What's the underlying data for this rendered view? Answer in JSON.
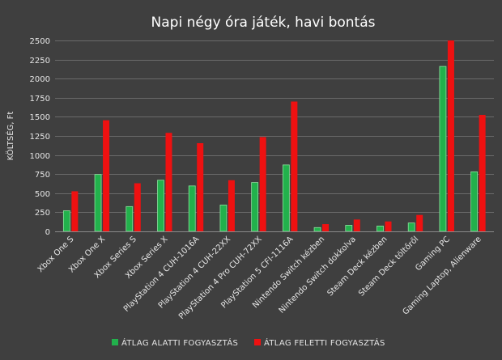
{
  "chart_data": {
    "type": "bar",
    "title": "Napi négy óra játék, havi bontás",
    "ylabel": "KÖLTSÉG, Ft",
    "xlabel": "",
    "ylim": [
      0,
      2500
    ],
    "yticks": [
      0,
      250,
      500,
      750,
      1000,
      1250,
      1500,
      1750,
      2000,
      2250,
      2500
    ],
    "grid": true,
    "legend_position": "bottom",
    "categories": [
      "Xbox One S",
      "Xbox One X",
      "Xbox Series S",
      "Xbox Series X",
      "PlayStation 4 CUH-1016A",
      "PlayStation 4 CUH-22XX",
      "PlayStation 4 Pro CUH-72XX",
      "PlayStation 5 CFI-1116A",
      "Nintendo Switch kézben",
      "Nintendo Switch dokkolva",
      "Steam Deck kézben",
      "Steam Deck töltőről",
      "Gaming PC",
      "Gaming Laptop, Alienware"
    ],
    "series": [
      {
        "name": "ÁTLAG ALATTI FOGYASZTÁS",
        "color": "#22b14c",
        "values": [
          270,
          745,
          325,
          670,
          595,
          345,
          640,
          870,
          50,
          80,
          70,
          110,
          2160,
          780
        ]
      },
      {
        "name": "ÁTLAG FELETTI FOGYASZTÁS",
        "color": "#ee1111",
        "values": [
          525,
          1455,
          630,
          1290,
          1155,
          670,
          1235,
          1700,
          95,
          155,
          130,
          215,
          2500,
          1525
        ]
      }
    ]
  }
}
